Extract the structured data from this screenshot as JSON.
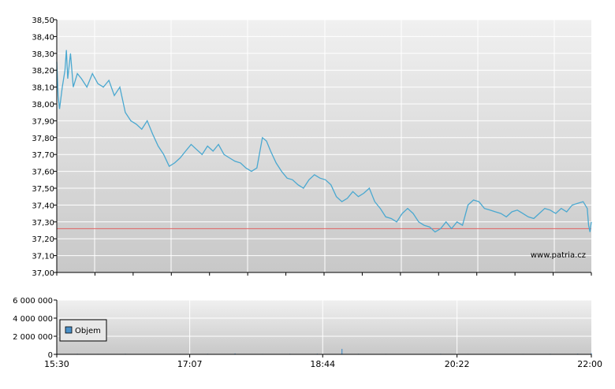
{
  "watermark": "www.patria.cz",
  "colors": {
    "price_line": "#4aa8d0",
    "reference_line": "#e06060",
    "volume_bar": "#4a90c8",
    "grid": "#ffffff",
    "plot_bg_top": "#f0f0f0",
    "plot_bg_bottom": "#c8c8c8"
  },
  "chart_data": [
    {
      "type": "line",
      "title": "",
      "xlabel": "",
      "ylabel": "",
      "ylim": [
        37.0,
        38.5
      ],
      "y_ticks": [
        "38,50",
        "38,40",
        "38,30",
        "38,20",
        "38,10",
        "38,00",
        "37,90",
        "37,80",
        "37,70",
        "37,60",
        "37,50",
        "37,40",
        "37,30",
        "37,20",
        "37,10",
        "37,00"
      ],
      "y_tick_values": [
        38.5,
        38.4,
        38.3,
        38.2,
        38.1,
        38.0,
        37.9,
        37.8,
        37.7,
        37.6,
        37.5,
        37.4,
        37.3,
        37.2,
        37.1,
        37.0
      ],
      "xlim": [
        "15:30",
        "22:00"
      ],
      "grid": true,
      "reference_value": 37.26,
      "series": [
        {
          "x": [
            "15:30",
            "15:31",
            "15:32",
            "15:34",
            "15:36",
            "15:37",
            "15:38",
            "15:40",
            "15:42",
            "15:45",
            "15:48",
            "15:52",
            "15:56",
            "16:00",
            "16:04",
            "16:08",
            "16:12",
            "16:16",
            "16:20",
            "16:24",
            "16:28",
            "16:32",
            "16:36",
            "16:40",
            "16:44",
            "16:48",
            "16:52",
            "16:56",
            "17:00",
            "17:04",
            "17:08",
            "17:12",
            "17:16",
            "17:20",
            "17:24",
            "17:28",
            "17:32",
            "17:36",
            "17:40",
            "17:44",
            "17:48",
            "17:52",
            "17:56",
            "18:00",
            "18:03",
            "18:06",
            "18:10",
            "18:14",
            "18:18",
            "18:22",
            "18:26",
            "18:30",
            "18:34",
            "18:38",
            "18:42",
            "18:46",
            "18:50",
            "18:54",
            "18:58",
            "19:02",
            "19:06",
            "19:10",
            "19:14",
            "19:18",
            "19:22",
            "19:26",
            "19:30",
            "19:34",
            "19:38",
            "19:42",
            "19:46",
            "19:50",
            "19:54",
            "19:58",
            "20:02",
            "20:06",
            "20:10",
            "20:14",
            "20:18",
            "20:22",
            "20:26",
            "20:30",
            "20:34",
            "20:38",
            "20:42",
            "20:46",
            "20:50",
            "20:54",
            "20:58",
            "21:02",
            "21:06",
            "21:10",
            "21:14",
            "21:18",
            "21:22",
            "21:26",
            "21:30",
            "21:34",
            "21:38",
            "21:42",
            "21:46",
            "21:50",
            "21:54",
            "21:57",
            "21:58",
            "21:59",
            "22:00"
          ],
          "values": [
            38.25,
            38.05,
            37.97,
            38.1,
            38.2,
            38.32,
            38.15,
            38.3,
            38.1,
            38.18,
            38.15,
            38.1,
            38.18,
            38.12,
            38.1,
            38.14,
            38.05,
            38.1,
            37.95,
            37.9,
            37.88,
            37.85,
            37.9,
            37.82,
            37.75,
            37.7,
            37.63,
            37.65,
            37.68,
            37.72,
            37.76,
            37.73,
            37.7,
            37.75,
            37.72,
            37.76,
            37.7,
            37.68,
            37.66,
            37.65,
            37.62,
            37.6,
            37.62,
            37.8,
            37.78,
            37.72,
            37.65,
            37.6,
            37.56,
            37.55,
            37.52,
            37.5,
            37.55,
            37.58,
            37.56,
            37.55,
            37.52,
            37.45,
            37.42,
            37.44,
            37.48,
            37.45,
            37.47,
            37.5,
            37.42,
            37.38,
            37.33,
            37.32,
            37.3,
            37.35,
            37.38,
            37.35,
            37.3,
            37.28,
            37.27,
            37.24,
            37.26,
            37.3,
            37.26,
            37.3,
            37.28,
            37.4,
            37.43,
            37.42,
            37.38,
            37.37,
            37.36,
            37.35,
            37.33,
            37.36,
            37.37,
            37.35,
            37.33,
            37.32,
            37.35,
            37.38,
            37.37,
            37.35,
            37.38,
            37.36,
            37.4,
            37.41,
            37.42,
            37.38,
            37.28,
            37.24,
            37.3
          ]
        }
      ]
    },
    {
      "type": "bar",
      "title": "",
      "xlabel": "",
      "ylabel": "",
      "ylim": [
        0,
        6000000
      ],
      "y_ticks": [
        "6 000 000",
        "4 000 000",
        "2 000 000",
        "0"
      ],
      "y_tick_values": [
        6000000,
        4000000,
        2000000,
        0
      ],
      "xlim": [
        "15:30",
        "22:00"
      ],
      "x_ticks": [
        "15:30",
        "17:07",
        "18:44",
        "20:22",
        "22:00"
      ],
      "legend": {
        "position": "top-left",
        "entries": [
          "Objem"
        ]
      },
      "grid": true,
      "series": [
        {
          "name": "Objem",
          "x": [
            "15:30",
            "15:45",
            "16:00",
            "16:20",
            "16:40",
            "17:00",
            "17:20",
            "17:40",
            "18:00",
            "18:20",
            "18:40",
            "18:58",
            "19:10",
            "19:30",
            "19:50",
            "20:10",
            "20:30",
            "20:50",
            "21:10",
            "21:30",
            "21:50",
            "22:00"
          ],
          "values": [
            80000,
            60000,
            50000,
            60000,
            40000,
            50000,
            60000,
            100000,
            50000,
            60000,
            70000,
            600000,
            60000,
            50000,
            40000,
            60000,
            50000,
            40000,
            50000,
            60000,
            70000,
            120000
          ]
        }
      ]
    }
  ]
}
